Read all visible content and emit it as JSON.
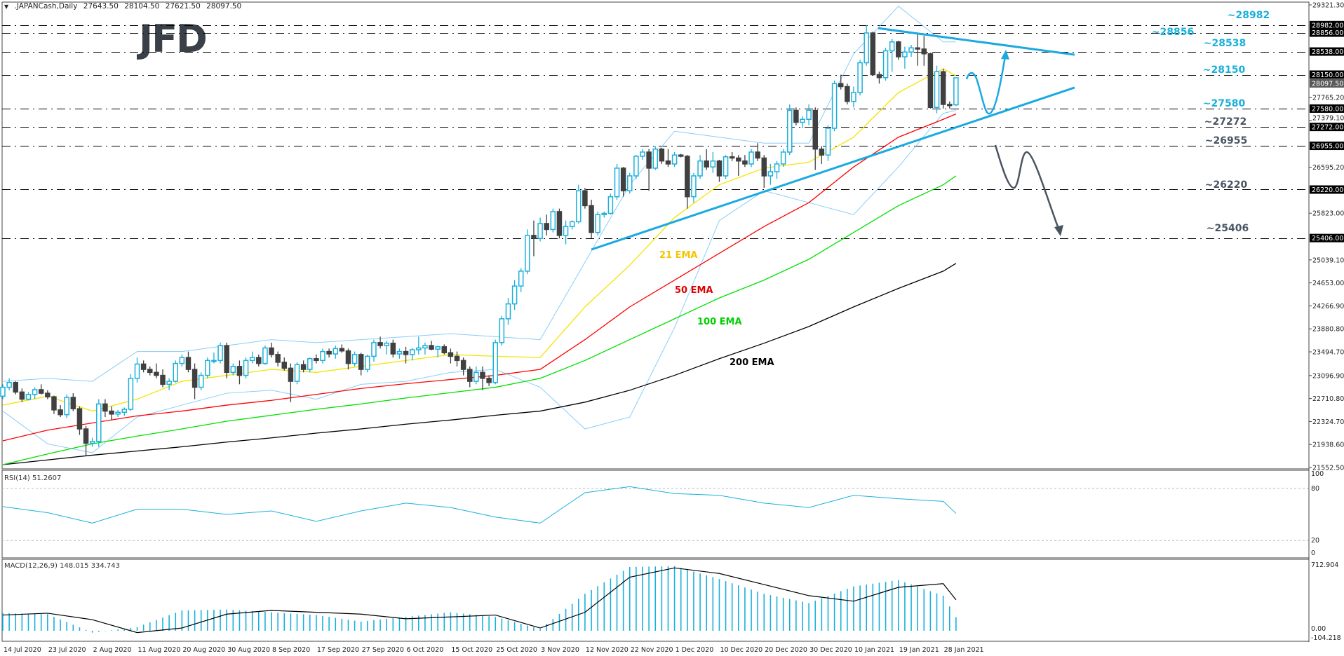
{
  "header": {
    "arrow": "▼",
    "symbol": ".JAPANCash,Daily",
    "open": "27643.50",
    "high": "28104.50",
    "low": "27621.50",
    "close": "28097.50"
  },
  "logo": {
    "text": "JFD",
    "color": "#3a4048"
  },
  "colors": {
    "bull": "#1ab0dc",
    "bear": "#404040",
    "bollinger": "#87cefa",
    "ema21": "#f5e400",
    "ema50": "#ff0000",
    "ema100": "#00e000",
    "ema200": "#000000",
    "trendline": "#1aa9e0",
    "bear_path": "#4a5563",
    "rsi": "#1ab0dc",
    "macd_hist": "#1ab0dc",
    "macd_signal": "#000000",
    "level_cyan": "#1ab0dc",
    "level_gray": "#4a5563"
  },
  "chart_data": {
    "type": "candlestick",
    "title": ".JAPANCash,Daily",
    "x_labels": [
      "14 Jul 2020",
      "23 Jul 2020",
      "2 Aug 2020",
      "11 Aug 2020",
      "20 Aug 2020",
      "30 Aug 2020",
      "8 Sep 2020",
      "17 Sep 2020",
      "27 Sep 2020",
      "6 Oct 2020",
      "15 Oct 2020",
      "25 Oct 2020",
      "3 Nov 2020",
      "12 Nov 2020",
      "22 Nov 2020",
      "1 Dec 2020",
      "10 Dec 2020",
      "20 Dec 2020",
      "30 Dec 2020",
      "10 Jan 2021",
      "19 Jan 2021",
      "28 Jan 2021"
    ],
    "ylim": [
      21552.5,
      29321.3
    ],
    "price_ticks": [
      "29321.30",
      "27765.20",
      "27379.10",
      "26595.20",
      "25823.00",
      "25039.10",
      "24653.00",
      "24266.90",
      "23880.80",
      "23494.70",
      "23096.90",
      "22710.80",
      "22324.70",
      "21938.60",
      "21552.50"
    ],
    "current_price": "28097.50",
    "candles_ohlc": [
      [
        22750,
        22950,
        22700,
        22900
      ],
      [
        22900,
        23050,
        22850,
        22980
      ],
      [
        22980,
        23000,
        22780,
        22820
      ],
      [
        22820,
        22880,
        22650,
        22700
      ],
      [
        22700,
        22820,
        22680,
        22780
      ],
      [
        22780,
        22900,
        22700,
        22860
      ],
      [
        22860,
        22950,
        22780,
        22800
      ],
      [
        22800,
        22850,
        22700,
        22740
      ],
      [
        22740,
        22760,
        22450,
        22520
      ],
      [
        22520,
        22600,
        22400,
        22440
      ],
      [
        22440,
        22780,
        22380,
        22730
      ],
      [
        22730,
        22800,
        22500,
        22540
      ],
      [
        22540,
        22580,
        22100,
        22200
      ],
      [
        22200,
        22250,
        21750,
        21960
      ],
      [
        21960,
        22050,
        21900,
        21990
      ],
      [
        21990,
        22700,
        21900,
        22620
      ],
      [
        22620,
        22700,
        22400,
        22500
      ],
      [
        22500,
        22580,
        22350,
        22450
      ],
      [
        22450,
        22520,
        22400,
        22480
      ],
      [
        22480,
        22560,
        22420,
        22530
      ],
      [
        22530,
        23120,
        22500,
        23050
      ],
      [
        23050,
        23400,
        22980,
        23290
      ],
      [
        23290,
        23350,
        23150,
        23200
      ],
      [
        23200,
        23250,
        23100,
        23150
      ],
      [
        23150,
        23300,
        23050,
        23100
      ],
      [
        23100,
        23200,
        22900,
        22950
      ],
      [
        22950,
        23050,
        22850,
        23000
      ],
      [
        23000,
        23350,
        22980,
        23300
      ],
      [
        23300,
        23450,
        23250,
        23400
      ],
      [
        23400,
        23500,
        23150,
        23200
      ],
      [
        23200,
        23300,
        22700,
        22900
      ],
      [
        22900,
        23150,
        22850,
        23100
      ],
      [
        23100,
        23400,
        23050,
        23350
      ],
      [
        23350,
        23480,
        23300,
        23350
      ],
      [
        23350,
        23650,
        23300,
        23600
      ],
      [
        23600,
        23650,
        23050,
        23150
      ],
      [
        23150,
        23300,
        23100,
        23250
      ],
      [
        23250,
        23350,
        22950,
        23100
      ],
      [
        23100,
        23400,
        23050,
        23350
      ],
      [
        23350,
        23500,
        23300,
        23400
      ],
      [
        23400,
        23450,
        23250,
        23300
      ],
      [
        23300,
        23600,
        23280,
        23560
      ],
      [
        23560,
        23650,
        23400,
        23450
      ],
      [
        23450,
        23500,
        23250,
        23320
      ],
      [
        23320,
        23400,
        23180,
        23220
      ],
      [
        23220,
        23300,
        22650,
        23000
      ],
      [
        23000,
        23320,
        22950,
        23280
      ],
      [
        23280,
        23350,
        23150,
        23200
      ],
      [
        23200,
        23400,
        23150,
        23380
      ],
      [
        23380,
        23450,
        23300,
        23350
      ],
      [
        23350,
        23550,
        23300,
        23500
      ],
      [
        23500,
        23550,
        23400,
        23460
      ],
      [
        23460,
        23600,
        23380,
        23550
      ],
      [
        23550,
        23620,
        23480,
        23510
      ],
      [
        23510,
        23550,
        23200,
        23300
      ],
      [
        23300,
        23500,
        23250,
        23450
      ],
      [
        23450,
        23480,
        23100,
        23200
      ],
      [
        23200,
        23450,
        23150,
        23420
      ],
      [
        23420,
        23700,
        23330,
        23650
      ],
      [
        23650,
        23750,
        23550,
        23600
      ],
      [
        23600,
        23680,
        23450,
        23640
      ],
      [
        23640,
        23700,
        23400,
        23460
      ],
      [
        23460,
        23550,
        23380,
        23500
      ],
      [
        23500,
        23580,
        23300,
        23450
      ],
      [
        23450,
        23560,
        23350,
        23530
      ],
      [
        23530,
        23750,
        23450,
        23560
      ],
      [
        23560,
        23650,
        23450,
        23600
      ],
      [
        23600,
        23680,
        23520,
        23540
      ],
      [
        23540,
        23600,
        23400,
        23580
      ],
      [
        23580,
        23620,
        23450,
        23480
      ],
      [
        23480,
        23550,
        23300,
        23420
      ],
      [
        23420,
        23500,
        23250,
        23350
      ],
      [
        23350,
        23400,
        23100,
        23200
      ],
      [
        23200,
        23250,
        22900,
        23000
      ],
      [
        23000,
        23250,
        22950,
        23150
      ],
      [
        23150,
        23250,
        22850,
        23050
      ],
      [
        23050,
        23100,
        22920,
        22980
      ],
      [
        22980,
        23700,
        22950,
        23650
      ],
      [
        23650,
        24100,
        23600,
        24050
      ],
      [
        24050,
        24400,
        23950,
        24300
      ],
      [
        24300,
        24700,
        24200,
        24600
      ],
      [
        24600,
        24900,
        24500,
        24850
      ],
      [
        24850,
        25550,
        24800,
        25450
      ],
      [
        25450,
        25700,
        25100,
        25400
      ],
      [
        25400,
        25750,
        25350,
        25650
      ],
      [
        25650,
        25800,
        25450,
        25550
      ],
      [
        25550,
        25900,
        25500,
        25850
      ],
      [
        25850,
        25900,
        25400,
        25450
      ],
      [
        25450,
        25700,
        25300,
        25600
      ],
      [
        25600,
        25700,
        25550,
        25680
      ],
      [
        25680,
        26300,
        25650,
        26200
      ],
      [
        26200,
        26250,
        25900,
        25950
      ],
      [
        25950,
        26050,
        25400,
        25500
      ],
      [
        25500,
        25850,
        25450,
        25800
      ],
      [
        25800,
        25850,
        25750,
        25820
      ],
      [
        25820,
        26150,
        25800,
        26100
      ],
      [
        26100,
        26650,
        26050,
        26580
      ],
      [
        26580,
        26600,
        26100,
        26200
      ],
      [
        26200,
        26500,
        26150,
        26450
      ],
      [
        26450,
        26800,
        26400,
        26780
      ],
      [
        26780,
        26900,
        26720,
        26850
      ],
      [
        26850,
        26900,
        26200,
        26580
      ],
      [
        26580,
        26950,
        26550,
        26900
      ],
      [
        26900,
        26920,
        26650,
        26700
      ],
      [
        26700,
        26900,
        26600,
        26650
      ],
      [
        26650,
        26850,
        26600,
        26800
      ],
      [
        26800,
        26820,
        26760,
        26780
      ],
      [
        26780,
        26800,
        25900,
        26100
      ],
      [
        26100,
        26500,
        26000,
        26450
      ],
      [
        26450,
        26800,
        26400,
        26700
      ],
      [
        26700,
        26900,
        26550,
        26600
      ],
      [
        26600,
        26850,
        26500,
        26700
      ],
      [
        26700,
        26720,
        26350,
        26450
      ],
      [
        26450,
        26800,
        26400,
        26770
      ],
      [
        26770,
        26850,
        26700,
        26750
      ],
      [
        26750,
        26800,
        26450,
        26700
      ],
      [
        26700,
        26800,
        26600,
        26650
      ],
      [
        26650,
        26900,
        26600,
        26850
      ],
      [
        26850,
        27000,
        26700,
        26750
      ],
      [
        26750,
        26800,
        26250,
        26450
      ],
      [
        26450,
        26650,
        26300,
        26520
      ],
      [
        26520,
        26700,
        26400,
        26650
      ],
      [
        26650,
        26900,
        26600,
        26850
      ],
      [
        26850,
        27650,
        26800,
        27550
      ],
      [
        27550,
        27600,
        27300,
        27350
      ],
      [
        27350,
        27450,
        27250,
        27400
      ],
      [
        27400,
        27650,
        27300,
        27550
      ],
      [
        27550,
        27600,
        26550,
        26900
      ],
      [
        26900,
        26950,
        26650,
        26800
      ],
      [
        26800,
        27300,
        26700,
        27250
      ],
      [
        27250,
        28050,
        27200,
        28000
      ],
      [
        28000,
        28150,
        27900,
        27950
      ],
      [
        27950,
        28000,
        27650,
        27700
      ],
      [
        27700,
        27950,
        27600,
        27850
      ],
      [
        27850,
        28400,
        27800,
        28350
      ],
      [
        28350,
        28982,
        28300,
        28850
      ],
      [
        28850,
        28870,
        28200,
        28150
      ],
      [
        28150,
        28200,
        28000,
        28100
      ],
      [
        28100,
        28600,
        28050,
        28550
      ],
      [
        28550,
        28750,
        28200,
        28700
      ],
      [
        28700,
        28720,
        28400,
        28450
      ],
      [
        28450,
        28620,
        28250,
        28530
      ],
      [
        28530,
        28650,
        28450,
        28600
      ],
      [
        28600,
        28840,
        28300,
        28580
      ],
      [
        28580,
        28800,
        28300,
        28500
      ],
      [
        28500,
        28520,
        27580,
        27600
      ],
      [
        27600,
        28300,
        27500,
        28200
      ],
      [
        28200,
        28250,
        27580,
        27650
      ],
      [
        27650,
        27700,
        27580,
        27630
      ],
      [
        27643.5,
        28104.5,
        27621.5,
        28097.5
      ]
    ],
    "overlays": {
      "ema21": {
        "label": "21 EMA",
        "at_labels": [
          22600,
          22750,
          22500,
          22700,
          23000,
          23100,
          23200,
          23150,
          23250,
          23350,
          23450,
          23420,
          23400,
          24250,
          24950,
          25750,
          26300,
          26580,
          26680,
          27100,
          27850,
          28250
        ],
        "last": 28130
      },
      "ema50": {
        "label": "50 EMA",
        "at_labels": [
          22000,
          22180,
          22300,
          22420,
          22500,
          22600,
          22680,
          22780,
          22880,
          22960,
          23030,
          23100,
          23200,
          23700,
          24250,
          24700,
          25150,
          25600,
          26000,
          26600,
          27100,
          27400
        ],
        "last": 27490
      },
      "ema100": {
        "label": "100 EMA",
        "at_labels": [
          21600,
          21780,
          21950,
          22080,
          22200,
          22330,
          22430,
          22530,
          22620,
          22720,
          22810,
          22900,
          23050,
          23350,
          23700,
          24050,
          24400,
          24700,
          25050,
          25500,
          25950,
          26300
        ],
        "last": 26450
      },
      "ema200": {
        "label": "200 EMA",
        "at_labels": [
          21600,
          21680,
          21760,
          21830,
          21900,
          21980,
          22050,
          22130,
          22200,
          22280,
          22350,
          22430,
          22500,
          22650,
          22850,
          23100,
          23380,
          23640,
          23920,
          24250,
          24560,
          24850
        ],
        "last": 24980
      },
      "bb_upper": {
        "at_labels": [
          23000,
          23050,
          23000,
          23500,
          23500,
          23600,
          23700,
          23650,
          23700,
          23750,
          23800,
          23750,
          23700,
          25000,
          26300,
          27200,
          27100,
          27000,
          27000,
          28500,
          29300,
          28700
        ],
        "last": 28700
      },
      "bb_lower": {
        "at_labels": [
          22500,
          21950,
          21800,
          22400,
          22600,
          22800,
          22850,
          22700,
          22950,
          23000,
          23150,
          23200,
          22900,
          22200,
          22400,
          23900,
          25700,
          26200,
          26000,
          25800,
          26600,
          27500
        ],
        "last": 27550
      }
    },
    "levels": [
      {
        "value": 28982,
        "label": "~28982",
        "tag": "28982.00",
        "color": "cyan"
      },
      {
        "value": 28856,
        "label": "~28856",
        "tag": "28856.00",
        "color": "cyan"
      },
      {
        "value": 28538,
        "label": "~28538",
        "tag": "28538.00",
        "color": "cyan"
      },
      {
        "value": 28150,
        "label": "~28150",
        "tag": "28150.00",
        "color": "cyan"
      },
      {
        "value": 27580,
        "label": "~27580",
        "tag": "27580.00",
        "color": "cyan"
      },
      {
        "value": 27272,
        "label": "~27272",
        "tag": "27272.00",
        "color": "gray"
      },
      {
        "value": 26955,
        "label": "~26955",
        "tag": "26955.00",
        "color": "gray"
      },
      {
        "value": 26220,
        "label": "~26220",
        "tag": "26220.00",
        "color": "gray"
      },
      {
        "value": 25406,
        "label": "~25406",
        "tag": "25406.00",
        "color": "gray"
      }
    ],
    "rsi": {
      "label": "RSI(14) 51.2607",
      "period": 14,
      "ylim": [
        0,
        100
      ],
      "ticks": [
        "100",
        "80",
        "20",
        "0"
      ],
      "levels": [
        80,
        20
      ],
      "at_labels": [
        59,
        52,
        40,
        56,
        56,
        50,
        54,
        42,
        54,
        63,
        58,
        47,
        40,
        75,
        82,
        74,
        72,
        63,
        58,
        72,
        68,
        65
      ],
      "last": 51.26
    },
    "macd": {
      "label": "MACD(12,26,9) 148.015 334.743",
      "params": [
        12,
        26,
        9
      ],
      "ticks": [
        "712.904",
        "0.00",
        "-104.218"
      ],
      "ylim": [
        -104.218,
        712.904
      ],
      "hist_at_labels": [
        190,
        180,
        -20,
        40,
        220,
        230,
        200,
        170,
        100,
        150,
        200,
        150,
        20,
        400,
        690,
        700,
        560,
        400,
        300,
        480,
        550,
        380
      ],
      "hist_last": 148.015,
      "signal_at_labels": [
        170,
        190,
        120,
        -20,
        30,
        180,
        220,
        200,
        180,
        130,
        150,
        170,
        30,
        200,
        580,
        680,
        620,
        500,
        380,
        320,
        470,
        510
      ],
      "signal_last": 334.743
    }
  }
}
